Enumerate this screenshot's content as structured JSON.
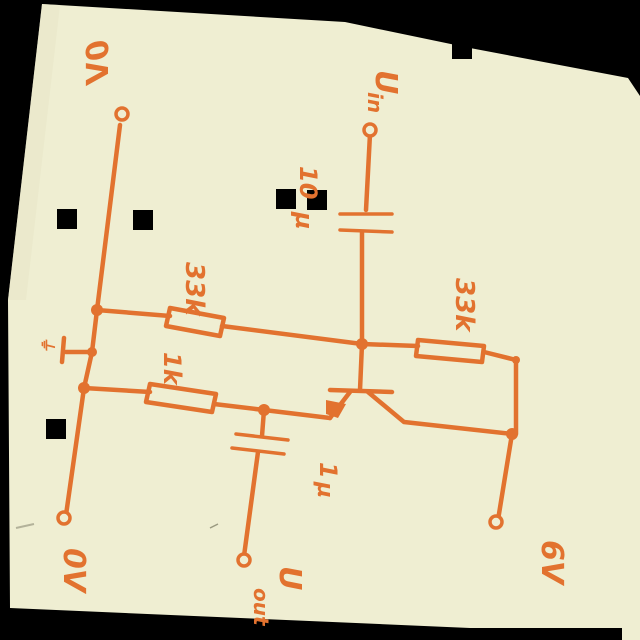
{
  "diagram": {
    "labels": {
      "zero_volt_top": "0V",
      "zero_volt_bottom": "0V",
      "six_volt": "6V",
      "u_in": "U",
      "u_in_sub": "in",
      "u_out": "U",
      "u_out_sub": "out",
      "cap_in": "10",
      "cap_in_unit": "µ",
      "cap_out": "1",
      "cap_out_unit": "µ",
      "r_bias_top": "33k",
      "r_bias_right": "33k",
      "r_emitter": "1k",
      "ground_mark": "⏚"
    },
    "colors": {
      "paper": "#efeed2",
      "ink": "#e2722f",
      "background": "#000000"
    }
  }
}
